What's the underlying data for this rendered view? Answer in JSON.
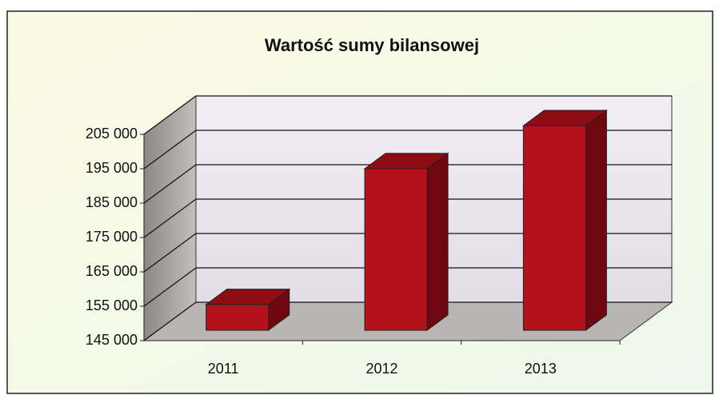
{
  "chart_data": {
    "type": "bar3d",
    "title": "Wartość sumy bilansowej",
    "categories": [
      "2011",
      "2012",
      "2013"
    ],
    "values": [
      152500,
      192000,
      204500
    ],
    "color": "#b3121c",
    "ylim": [
      145000,
      205000
    ],
    "yticks": [
      {
        "value": 145000,
        "label": "145 000"
      },
      {
        "value": 155000,
        "label": "155 000"
      },
      {
        "value": 165000,
        "label": "165 000"
      },
      {
        "value": 175000,
        "label": "175 000"
      },
      {
        "value": 185000,
        "label": "185 000"
      },
      {
        "value": 195000,
        "label": "195 000"
      },
      {
        "value": 205000,
        "label": "205 000"
      }
    ],
    "grid": true
  }
}
